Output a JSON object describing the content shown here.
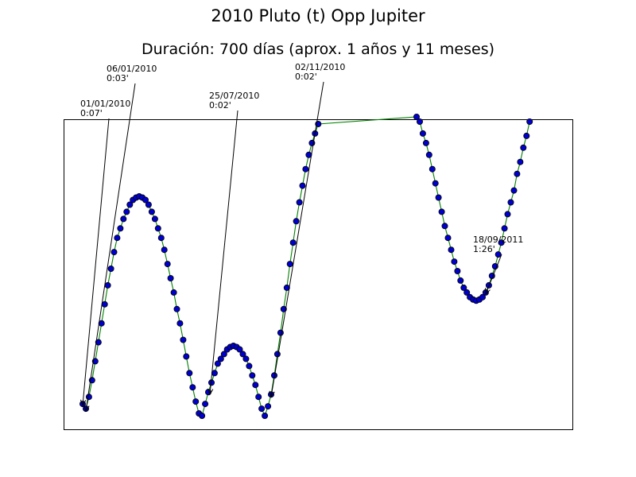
{
  "chart_data": {
    "type": "line",
    "title": "2010 Pluto (t) Opp Jupiter",
    "subtitle": "Duración: 700 días (aprox. 1 años y 11 meses)",
    "xlabel": "",
    "ylabel": "",
    "axes_ticks": "none",
    "grid": false,
    "colors": {
      "line": "#008000",
      "marker_fill": "#0000cc",
      "marker_edge": "#000000"
    },
    "series": [
      {
        "values": [
          0.07,
          0.05,
          0.1,
          0.17,
          0.25,
          0.33,
          0.41,
          0.49,
          0.57,
          0.64,
          0.71,
          0.77,
          0.81,
          0.85,
          0.88,
          0.91,
          0.93,
          0.94,
          0.945,
          0.94,
          0.93,
          0.91,
          0.88,
          0.85,
          0.81,
          0.77,
          0.72,
          0.66,
          0.6,
          0.54,
          0.47,
          0.41,
          0.34,
          0.27,
          0.2,
          0.14,
          0.08,
          0.03,
          0.02,
          0.07,
          0.12,
          0.16,
          0.2,
          0.24,
          0.26,
          0.28,
          0.3,
          0.31,
          0.315,
          0.31,
          0.3,
          0.28,
          0.26,
          0.23,
          0.19,
          0.15,
          0.1,
          0.05,
          0.02,
          0.06,
          0.11,
          0.19,
          0.28,
          0.37,
          0.47,
          0.56,
          0.66,
          0.75,
          0.84,
          0.92,
          0.99,
          1.06,
          1.12,
          1.17,
          1.21,
          1.25,
          1.28,
          1.26,
          1.21,
          1.17,
          1.12,
          1.06,
          1.0,
          0.94,
          0.88,
          0.82,
          0.77,
          0.72,
          0.67,
          0.63,
          0.59,
          0.56,
          0.54,
          0.52,
          0.51,
          0.505,
          0.51,
          0.52,
          0.54,
          0.57,
          0.61,
          0.65,
          0.7,
          0.75,
          0.81,
          0.87,
          0.92,
          0.97,
          1.04,
          1.09,
          1.15,
          1.2,
          1.26
        ]
      }
    ],
    "annotations": [
      {
        "date": "01/01/2010",
        "value": "0:07'"
      },
      {
        "date": "06/01/2010",
        "value": "0:03'"
      },
      {
        "date": "25/07/2010",
        "value": "0:02'"
      },
      {
        "date": "02/11/2010",
        "value": "0:02'"
      },
      {
        "date": "18/09/2011",
        "value": "1:26'"
      }
    ]
  }
}
